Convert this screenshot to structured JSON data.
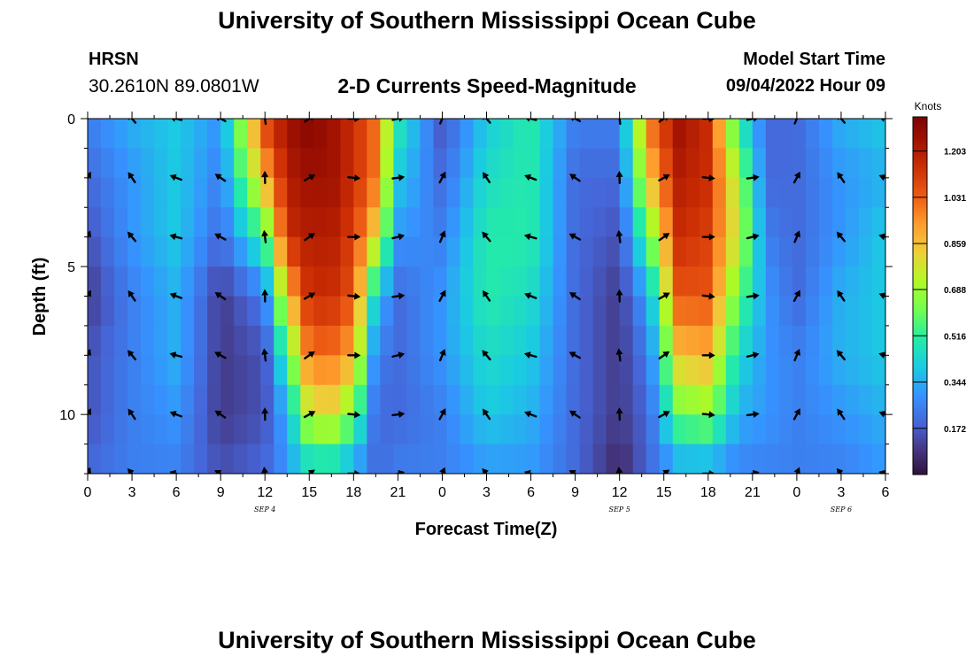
{
  "header": {
    "title": "University of Southern Mississippi Ocean Cube",
    "station": "HRSN",
    "coords": "30.2610N  89.0801W",
    "subtitle": "2-D Currents Speed-Magnitude",
    "model_start_label": "Model Start Time",
    "model_start_value": "09/04/2022 Hour 09"
  },
  "footer": {
    "title": "University of Southern Mississippi Ocean Cube"
  },
  "chart_data": {
    "type": "heatmap",
    "title": "2-D Currents Speed-Magnitude",
    "xlabel": "Forecast Time(Z)",
    "ylabel": "Depth (ft)",
    "x_hours_range": [
      0,
      54
    ],
    "x_tick_hours": [
      0,
      3,
      6,
      9,
      12,
      15,
      18,
      21,
      24,
      27,
      30,
      33,
      36,
      39,
      42,
      45,
      48,
      51,
      54
    ],
    "x_tick_labels": [
      "0",
      "3",
      "6",
      "9",
      "12",
      "15",
      "18",
      "21",
      "0",
      "3",
      "6",
      "9",
      "12",
      "15",
      "18",
      "21",
      "0",
      "3",
      "6"
    ],
    "date_labels": [
      {
        "text": "SEP 4",
        "hour": 12
      },
      {
        "text": "SEP 5",
        "hour": 36
      },
      {
        "text": "SEP 6",
        "hour": 51
      }
    ],
    "y_range_ft": [
      0,
      12
    ],
    "y_ticks": [
      0,
      5,
      10
    ],
    "colorbar": {
      "title": "Knots",
      "min": 0.0,
      "max": 1.33,
      "ticks": [
        0.172,
        0.344,
        0.516,
        0.688,
        0.859,
        1.031,
        1.203
      ]
    },
    "depth_levels_ft": [
      0,
      2,
      4,
      6,
      8,
      10,
      12
    ],
    "speed_profile_hours": [
      0,
      3,
      6,
      9,
      12,
      13.5,
      15,
      16.5,
      18,
      19.5,
      21,
      24,
      27,
      30,
      33,
      36,
      38,
      40,
      42,
      44,
      46,
      48,
      51,
      54
    ],
    "speed_profile_knots": [
      [
        0.25,
        0.35,
        0.4,
        0.3,
        1.1,
        1.25,
        1.3,
        1.25,
        1.15,
        1.0,
        0.5,
        0.15,
        0.4,
        0.5,
        0.25,
        0.25,
        1.0,
        1.25,
        1.15,
        0.5,
        0.2,
        0.2,
        0.35,
        0.4
      ],
      [
        0.2,
        0.3,
        0.4,
        0.25,
        0.9,
        1.2,
        1.25,
        1.25,
        1.15,
        1.0,
        0.4,
        0.2,
        0.45,
        0.5,
        0.2,
        0.2,
        0.85,
        1.2,
        1.15,
        0.7,
        0.2,
        0.2,
        0.3,
        0.35
      ],
      [
        0.15,
        0.3,
        0.4,
        0.2,
        0.55,
        1.15,
        1.2,
        1.2,
        1.1,
        0.8,
        0.3,
        0.25,
        0.5,
        0.5,
        0.2,
        0.15,
        0.6,
        1.15,
        1.1,
        0.75,
        0.25,
        0.2,
        0.3,
        0.4
      ],
      [
        0.1,
        0.25,
        0.35,
        0.1,
        0.25,
        0.85,
        1.15,
        1.15,
        1.05,
        0.4,
        0.2,
        0.3,
        0.5,
        0.45,
        0.2,
        0.1,
        0.35,
        1.05,
        1.05,
        0.6,
        0.3,
        0.2,
        0.35,
        0.4
      ],
      [
        0.15,
        0.25,
        0.35,
        0.1,
        0.15,
        0.55,
        1.0,
        1.0,
        0.9,
        0.25,
        0.2,
        0.3,
        0.45,
        0.4,
        0.2,
        0.1,
        0.25,
        0.85,
        0.9,
        0.45,
        0.3,
        0.25,
        0.35,
        0.4
      ],
      [
        0.15,
        0.25,
        0.3,
        0.1,
        0.15,
        0.35,
        0.75,
        0.8,
        0.6,
        0.2,
        0.2,
        0.25,
        0.4,
        0.35,
        0.2,
        0.1,
        0.2,
        0.6,
        0.65,
        0.35,
        0.3,
        0.25,
        0.3,
        0.35
      ],
      [
        0.2,
        0.25,
        0.25,
        0.15,
        0.2,
        0.3,
        0.4,
        0.4,
        0.3,
        0.2,
        0.25,
        0.25,
        0.3,
        0.3,
        0.2,
        0.05,
        0.2,
        0.3,
        0.3,
        0.25,
        0.25,
        0.25,
        0.25,
        0.3
      ]
    ]
  }
}
